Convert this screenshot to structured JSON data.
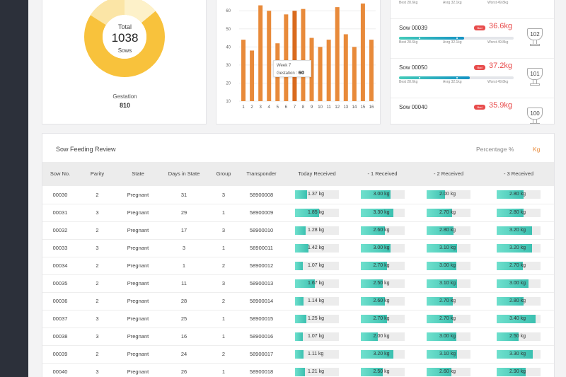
{
  "donut": {
    "total_label": "Total",
    "total_value": "1038",
    "unit": "Sows",
    "gestation_label": "Gestation",
    "gestation_value": "810",
    "colors": {
      "main": "#f8c23c",
      "light": "#fbe5a6",
      "bg": "#fdf1c9"
    }
  },
  "bar_chart": {
    "tooltip": {
      "week": "Week 7",
      "label": "Gestation :",
      "value": "60"
    },
    "color": "#e88a3a"
  },
  "chart_data": {
    "type": "bar",
    "categories": [
      "1",
      "2",
      "3",
      "4",
      "5",
      "6",
      "7",
      "8",
      "9",
      "10",
      "11",
      "12",
      "13",
      "14",
      "15",
      "16"
    ],
    "values": [
      44,
      38,
      63,
      60,
      42,
      58,
      60,
      61,
      45,
      40,
      44,
      62,
      47,
      40,
      64,
      44
    ],
    "ylim": [
      10,
      64
    ],
    "yticks": [
      10,
      20,
      30,
      40,
      50,
      60
    ],
    "highlight_index": 6
  },
  "ranking": {
    "legend_top": [
      "Best 28.6kg",
      "Avrg 32.1kg",
      "Worst 49.8kg"
    ],
    "badge": "Bad",
    "items": [
      {
        "name": "Sow 00039",
        "value": "36.6kg",
        "rank": "102",
        "fill_pct": 57,
        "legend": [
          "Best 28.6kg",
          "Avrg 32.1kg",
          "Worst 49.8kg"
        ]
      },
      {
        "name": "Sow 00050",
        "value": "37.2kg",
        "rank": "101",
        "fill_pct": 62,
        "legend": [
          "Best 28.6kg",
          "Avrg 32.1kg",
          "Worst 49.8kg"
        ]
      },
      {
        "name": "Sow 00040",
        "value": "35.9kg",
        "rank": "100",
        "fill_pct": 55,
        "legend": []
      }
    ]
  },
  "table": {
    "title": "Sow Feeding Review",
    "toggle_percentage": "Percentage %",
    "toggle_kg": "Kg",
    "headers": [
      "Sow No.",
      "Parity",
      "State",
      "Days in State",
      "Group",
      "Transponder",
      "Today Received",
      "- 1 Received",
      "- 2 Received",
      "- 3 Received"
    ],
    "rows": [
      [
        "00030",
        "2",
        "Pregnant",
        "31",
        "3",
        "58900008",
        "1.37 kg",
        "3.00 kg",
        "2.00 kg",
        "2.80 kg"
      ],
      [
        "00031",
        "3",
        "Pregnant",
        "29",
        "1",
        "58900009",
        "1.85 kg",
        "3.30 kg",
        "2.70 kg",
        "2.80 kg"
      ],
      [
        "00032",
        "2",
        "Pregnant",
        "17",
        "3",
        "58900010",
        "1.28 kg",
        "2.60 kg",
        "2.80 kg",
        "3.20 kg"
      ],
      [
        "00033",
        "3",
        "Pregnant",
        "3",
        "1",
        "58900011",
        "1.42 kg",
        "3.00 kg",
        "3.10 kg",
        "3.20 kg"
      ],
      [
        "00034",
        "2",
        "Pregnant",
        "1",
        "2",
        "58900012",
        "1.07 kg",
        "2.70 kg",
        "3.00 kg",
        "2.70 kg"
      ],
      [
        "00035",
        "2",
        "Pregnant",
        "11",
        "3",
        "58900013",
        "1.67 kg",
        "2.50 kg",
        "3.10 kg",
        "3.00 kg"
      ],
      [
        "00036",
        "2",
        "Pregnant",
        "28",
        "2",
        "58900014",
        "1.14 kg",
        "2.60 kg",
        "2.70 kg",
        "2.80 kg"
      ],
      [
        "00037",
        "3",
        "Pregnant",
        "25",
        "1",
        "58900015",
        "1.25 kg",
        "2.70 kg",
        "2.70 kg",
        "3.40 kg"
      ],
      [
        "00038",
        "3",
        "Pregnant",
        "16",
        "1",
        "58900016",
        "1.07 kg",
        "2.00 kg",
        "3.00 kg",
        "2.50 kg"
      ],
      [
        "00039",
        "2",
        "Pregnant",
        "24",
        "2",
        "58900017",
        "1.11 kg",
        "3.20 kg",
        "3.10 kg",
        "3.30 kg"
      ],
      [
        "00040",
        "3",
        "Pregnant",
        "26",
        "1",
        "58900018",
        "1.21 kg",
        "2.50 kg",
        "2.60 kg",
        "2.90 kg"
      ]
    ],
    "fill_fractions": [
      [
        0.28,
        0.68,
        0.42,
        0.62
      ],
      [
        0.55,
        0.75,
        0.58,
        0.62
      ],
      [
        0.24,
        0.56,
        0.62,
        0.8
      ],
      [
        0.3,
        0.68,
        0.7,
        0.8
      ],
      [
        0.18,
        0.6,
        0.68,
        0.6
      ],
      [
        0.45,
        0.5,
        0.7,
        0.72
      ],
      [
        0.2,
        0.56,
        0.6,
        0.62
      ],
      [
        0.26,
        0.6,
        0.6,
        0.88
      ],
      [
        0.18,
        0.4,
        0.68,
        0.5
      ],
      [
        0.2,
        0.75,
        0.7,
        0.82
      ],
      [
        0.22,
        0.5,
        0.56,
        0.66
      ]
    ]
  }
}
